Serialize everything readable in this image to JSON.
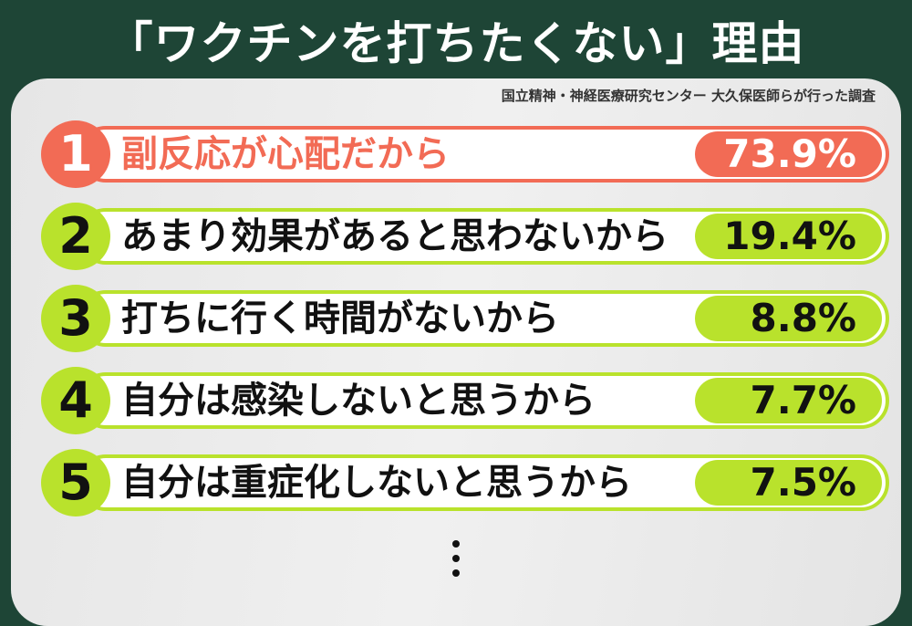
{
  "title": "「ワクチンを打ちたくない」理由",
  "source": "国立精神・神経医療研究センター 大久保医師らが行った調査",
  "colors": {
    "background": "#1e4536",
    "top": "#f26b55",
    "others": "#b9e22c"
  },
  "chart_data": {
    "type": "table",
    "title": "「ワクチンを打ちたくない」理由",
    "rows": [
      {
        "rank": "1",
        "reason": "副反応が心配だから",
        "percent": "73.9%",
        "value": 73.9
      },
      {
        "rank": "2",
        "reason": "あまり効果があると思わないから",
        "percent": "19.4%",
        "value": 19.4
      },
      {
        "rank": "3",
        "reason": "打ちに行く時間がないから",
        "percent": "8.8%",
        "value": 8.8
      },
      {
        "rank": "4",
        "reason": "自分は感染しないと思うから",
        "percent": "7.7%",
        "value": 7.7
      },
      {
        "rank": "5",
        "reason": "自分は重症化しないと思うから",
        "percent": "7.5%",
        "value": 7.5
      }
    ],
    "continuation": "more-items-ellipsis"
  }
}
